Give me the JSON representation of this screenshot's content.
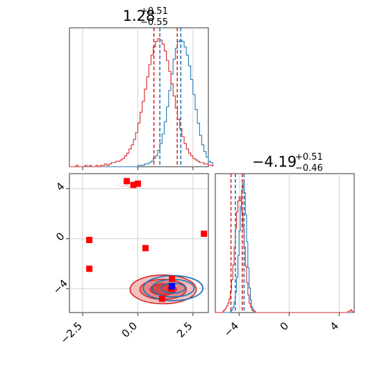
{
  "chart_data": [
    {
      "panel": "top-left",
      "type": "histogram",
      "title_value": "1.28",
      "title_plus": "+0.51",
      "title_minus": "−0.55",
      "xlim": [
        -3.1,
        3.2
      ],
      "grid": true,
      "series": [
        {
          "name": "",
          "color": "#1f77b4",
          "bin_start": -3.1,
          "bin_width": 0.1,
          "values": [
            0,
            0,
            0,
            0,
            0,
            0,
            0,
            0,
            0,
            0,
            0,
            0,
            0,
            0,
            0,
            0,
            0,
            0,
            0,
            0,
            0,
            0,
            0,
            0,
            0,
            0,
            0,
            0,
            0,
            0,
            0,
            1,
            1,
            1,
            2,
            2,
            3,
            4,
            6,
            8,
            12,
            17,
            24,
            33,
            44,
            56,
            68,
            79,
            87,
            92,
            93,
            92,
            88,
            82,
            74,
            64,
            53,
            42,
            32,
            23,
            16,
            11,
            7,
            4,
            3
          ],
          "quantile_lines": [
            1.0,
            1.95
          ]
        },
        {
          "name": "",
          "color": "#d62728",
          "bin_start": -3.1,
          "bin_width": 0.1,
          "values": [
            0,
            0,
            0,
            1,
            0,
            0,
            0,
            1,
            0,
            1,
            0,
            0,
            1,
            0,
            1,
            1,
            2,
            1,
            2,
            3,
            3,
            4,
            4,
            5,
            6,
            8,
            10,
            13,
            16,
            20,
            25,
            32,
            40,
            48,
            57,
            66,
            75,
            82,
            88,
            92,
            94,
            93,
            90,
            85,
            78,
            70,
            61,
            52,
            43,
            35,
            28,
            22,
            17,
            13,
            10,
            8,
            6,
            5,
            4,
            3,
            3,
            2,
            2,
            1,
            1
          ],
          "quantile_lines": [
            0.73,
            1.79
          ]
        }
      ]
    },
    {
      "panel": "bottom-left",
      "type": "scatter",
      "xlim": [
        -3.1,
        3.2
      ],
      "ylim": [
        -5.9,
        5.2
      ],
      "x_ticks": [
        "−2.5",
        "0.0",
        "2.5"
      ],
      "y_ticks": [
        "4",
        "0",
        "−4"
      ],
      "grid": true,
      "contours": {
        "red_center": [
          1.15,
          -4.05
        ],
        "blue_center": [
          1.6,
          -3.95
        ]
      },
      "points_red": [
        [
          -0.5,
          4.6
        ],
        [
          -0.2,
          4.3
        ],
        [
          0.0,
          4.4
        ],
        [
          -2.2,
          -0.1
        ],
        [
          -2.2,
          -2.4
        ],
        [
          0.35,
          -0.75
        ],
        [
          3.0,
          0.4
        ],
        [
          1.55,
          -3.2
        ],
        [
          1.1,
          -4.8
        ],
        [
          1.5,
          -4.0
        ]
      ],
      "points_blue": [
        [
          1.55,
          -3.8
        ]
      ]
    },
    {
      "panel": "bottom-right",
      "type": "histogram",
      "title_value": "−4.19",
      "title_plus": "+0.51",
      "title_minus": "−0.46",
      "xlim": [
        -5.9,
        5.2
      ],
      "x_ticks": [
        "−4",
        "0",
        "4"
      ],
      "grid": true,
      "series": [
        {
          "name": "",
          "color": "#1f77b4",
          "bin_start": -5.9,
          "bin_width": 0.1,
          "values": [
            0,
            0,
            0,
            0,
            0,
            0,
            0,
            0,
            0,
            0,
            0,
            0,
            1,
            2,
            4,
            8,
            15,
            26,
            42,
            60,
            78,
            90,
            95,
            88,
            72,
            52,
            33,
            18,
            9,
            4,
            2,
            1,
            0,
            0,
            0,
            0,
            0,
            0,
            0,
            0,
            0,
            0,
            0,
            0,
            0,
            0,
            0,
            0,
            0,
            0,
            0,
            0,
            0,
            0,
            0,
            0,
            0,
            0,
            0,
            0,
            0,
            0,
            0,
            0,
            0,
            0,
            0,
            0,
            0,
            0,
            0,
            0,
            0,
            0,
            0,
            0,
            0,
            0,
            0,
            0,
            0,
            0,
            0,
            0,
            0,
            0,
            0,
            0,
            0,
            0,
            0,
            0,
            0,
            0,
            0,
            0,
            0,
            0,
            0,
            0,
            0,
            0,
            0,
            0,
            0,
            0,
            0,
            0,
            0,
            0,
            0
          ],
          "quantile_lines": [
            -4.3,
            -3.6
          ]
        },
        {
          "name": "",
          "color": "#d62728",
          "bin_start": -5.9,
          "bin_width": 0.1,
          "values": [
            0,
            0,
            0,
            0,
            0,
            0,
            1,
            2,
            3,
            5,
            7,
            10,
            16,
            24,
            35,
            48,
            62,
            74,
            82,
            85,
            82,
            74,
            62,
            48,
            34,
            22,
            13,
            7,
            4,
            2,
            1,
            1,
            0,
            0,
            0,
            0,
            0,
            0,
            0,
            0,
            0,
            0,
            0,
            0,
            0,
            0,
            0,
            0,
            0,
            0,
            0,
            0,
            0,
            0,
            0,
            0,
            0,
            0,
            0,
            0,
            0,
            0,
            0,
            0,
            0,
            0,
            0,
            0,
            0,
            0,
            0,
            0,
            0,
            0,
            0,
            0,
            0,
            0,
            0,
            0,
            0,
            0,
            0,
            0,
            0,
            0,
            0,
            0,
            0,
            0,
            0,
            0,
            0,
            0,
            0,
            0,
            0,
            0,
            0,
            0,
            0,
            0,
            0,
            0,
            0,
            0,
            1,
            1,
            2,
            1,
            0
          ],
          "quantile_lines": [
            -4.65,
            -3.75
          ]
        }
      ]
    }
  ]
}
